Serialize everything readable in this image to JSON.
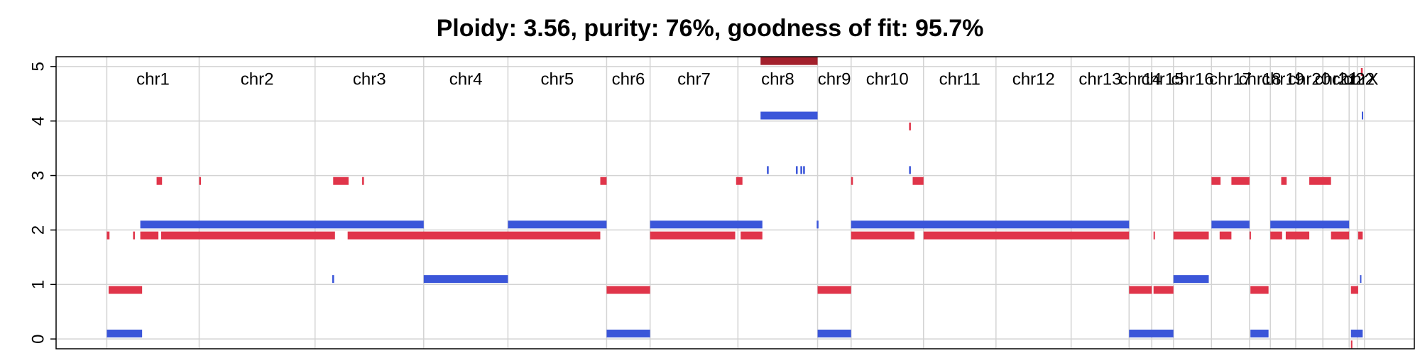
{
  "chart_data": {
    "type": "segments",
    "title": "Ploidy: 3.56, purity: 76%, goodness of fit: 95.7%",
    "xlim": [
      0,
      1500
    ],
    "ylim": [
      -0.18,
      5.18
    ],
    "yticks": [
      0,
      1,
      2,
      3,
      4,
      5
    ],
    "grid": true,
    "chromosomes": [
      "chr1",
      "chr2",
      "chr3",
      "chr4",
      "chr5",
      "chr6",
      "chr7",
      "chr8",
      "chr9",
      "chr10",
      "chr11",
      "chr12",
      "chr13",
      "chr14",
      "chr15",
      "chr16",
      "chr17",
      "chr18",
      "chr19",
      "chr20",
      "chr21",
      "chr22",
      "chrX"
    ],
    "boundaries": [
      56,
      158,
      286,
      406,
      499,
      608,
      656,
      753,
      841,
      878,
      958,
      1038,
      1121,
      1185,
      1210,
      1234,
      1276,
      1318,
      1341,
      1369,
      1399,
      1428,
      1437,
      1445
    ],
    "series": [
      {
        "color": "#3b56d9",
        "x0": [
          56,
          93,
          305,
          406,
          499,
          608,
          656,
          778,
          785,
          817,
          822,
          825,
          840,
          841,
          878,
          942,
          1185,
          1234,
          1276,
          1319,
          1341,
          1430,
          1440,
          1442
        ],
        "x1": [
          95,
          406,
          307,
          499,
          608,
          656,
          780,
          841,
          787,
          819,
          824,
          827,
          842,
          878,
          1185,
          944,
          1234,
          1273,
          1318,
          1339,
          1428,
          1443,
          1441,
          1443
        ],
        "values": [
          0.1,
          2.1,
          1.1,
          1.1,
          2.1,
          0.1,
          2.1,
          4.1,
          3.1,
          3.1,
          3.1,
          3.1,
          2.1,
          0.1,
          2.1,
          3.1,
          0.1,
          1.1,
          2.1,
          0.1,
          2.1,
          0.1,
          1.1,
          4.1
        ]
      },
      {
        "color": "#e0354a",
        "x0": [
          56,
          58,
          85,
          93,
          111,
          116,
          158,
          306,
          338,
          322,
          601,
          608,
          656,
          751,
          756,
          841,
          878,
          878,
          942,
          946,
          958,
          1185,
          1212,
          1212,
          1234,
          1276,
          1285,
          1298,
          1318,
          1319,
          1341,
          1353,
          1358,
          1384,
          1408,
          1430,
          1438,
          1430,
          1441
        ],
        "x1": [
          59,
          95,
          87,
          113,
          117,
          308,
          160,
          323,
          340,
          601,
          608,
          656,
          750,
          758,
          780,
          878,
          880,
          948,
          944,
          958,
          1185,
          1210,
          1213,
          1234,
          1273,
          1286,
          1298,
          1318,
          1319,
          1339,
          1354,
          1359,
          1384,
          1408,
          1428,
          1438,
          1443,
          1431,
          1443
        ],
        "values": [
          1.9,
          0.9,
          1.9,
          1.9,
          2.9,
          1.9,
          2.9,
          2.9,
          2.9,
          1.9,
          2.9,
          0.9,
          1.9,
          2.9,
          1.9,
          0.9,
          2.9,
          1.9,
          3.9,
          2.9,
          1.9,
          0.9,
          1.9,
          0.9,
          1.9,
          2.9,
          1.9,
          2.9,
          1.9,
          0.9,
          1.9,
          2.9,
          1.9,
          2.9,
          1.9,
          0.9,
          1.9,
          -0.1,
          4.9
        ]
      },
      {
        "color": "#a3202c",
        "x0": [
          778
        ],
        "x1": [
          841
        ],
        "values": [
          5.1
        ]
      }
    ]
  }
}
